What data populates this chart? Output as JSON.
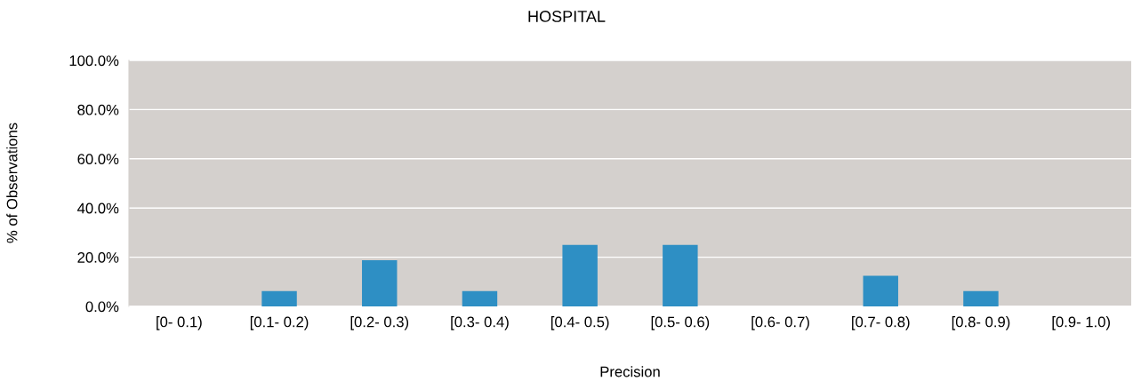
{
  "chart_data": {
    "type": "bar",
    "title": "HOSPITAL",
    "xlabel": "Precision",
    "ylabel": "% of Observations",
    "categories": [
      "[0- 0.1)",
      "[0.1- 0.2)",
      "[0.2- 0.3)",
      "[0.3- 0.4)",
      "[0.4- 0.5)",
      "[0.5- 0.6)",
      "[0.6- 0.7)",
      "[0.7- 0.8)",
      "[0.8- 0.9)",
      "[0.9- 1.0)"
    ],
    "values": [
      0,
      6.25,
      18.75,
      6.25,
      25,
      25,
      0,
      12.5,
      6.25,
      0
    ],
    "color": "#2e8fc4",
    "ylim": [
      0,
      100
    ],
    "yticks": [
      {
        "value": 0,
        "label": "0.0%"
      },
      {
        "value": 20,
        "label": "20.0%"
      },
      {
        "value": 40,
        "label": "40.0%"
      },
      {
        "value": 60,
        "label": "60.0%"
      },
      {
        "value": 80,
        "label": "80.0%"
      },
      {
        "value": 100,
        "label": "100.0%"
      }
    ],
    "grid": "y"
  }
}
